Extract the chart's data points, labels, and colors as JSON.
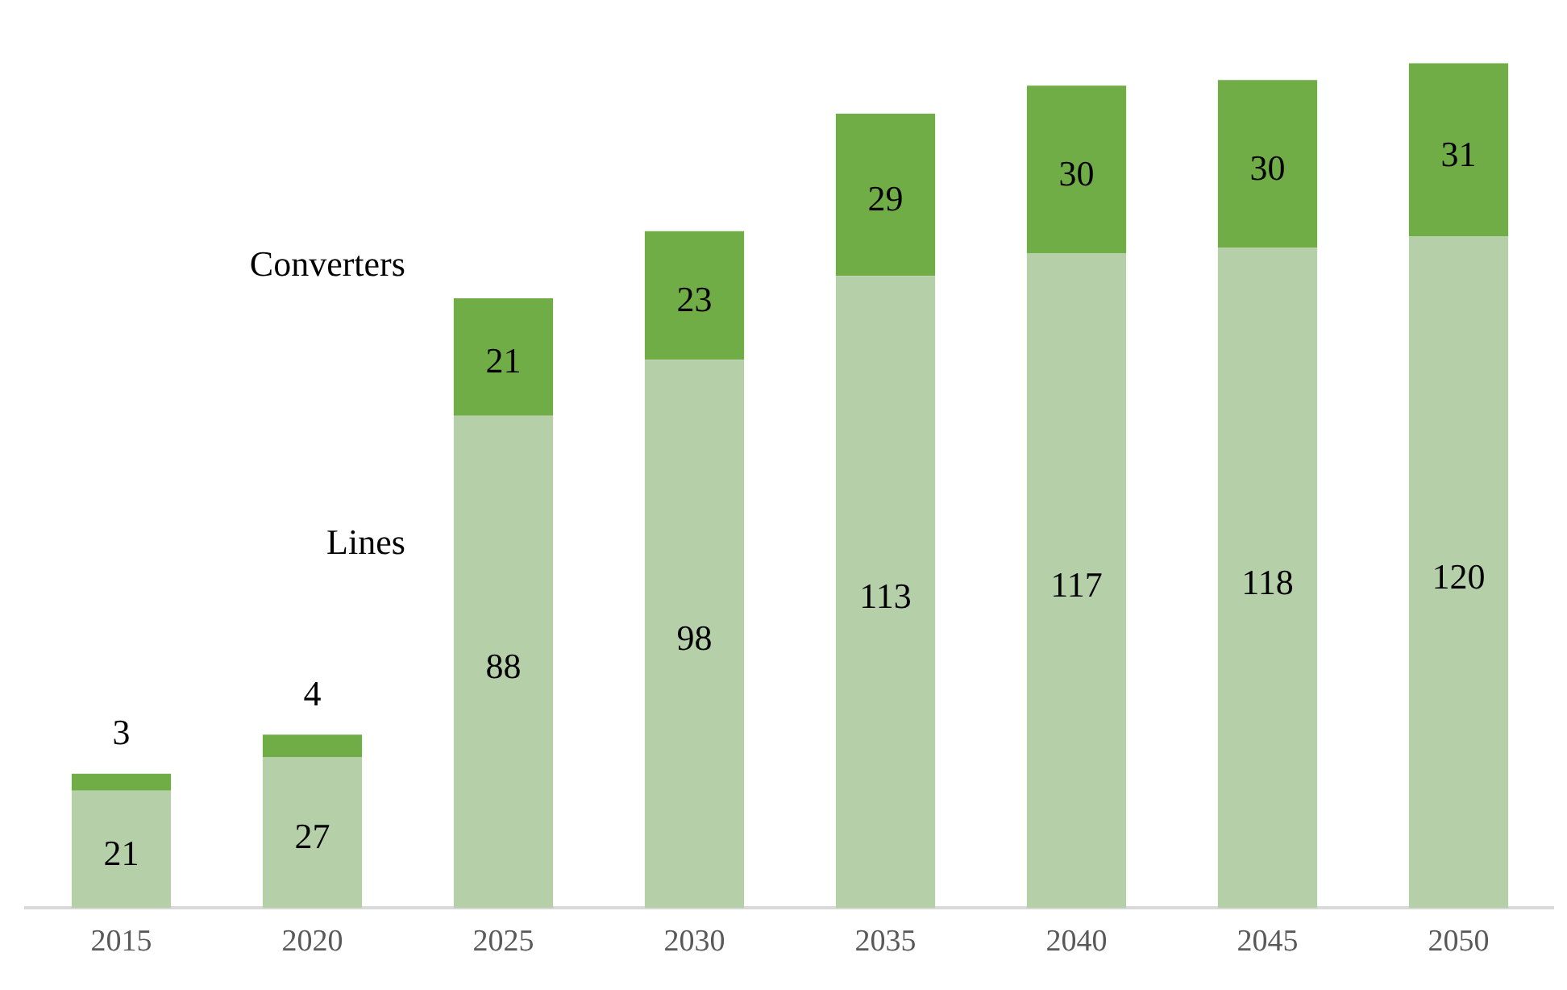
{
  "chart_data": {
    "type": "bar",
    "stacked": true,
    "relative": false,
    "data_labels": true,
    "legend": false,
    "grid": false,
    "categories": [
      "2015",
      "2020",
      "2025",
      "2030",
      "2035",
      "2040",
      "2045",
      "2050"
    ],
    "series": [
      {
        "name": "Lines",
        "color": "#b5d0a8",
        "values": [
          21,
          27,
          88,
          98,
          113,
          117,
          118,
          120
        ]
      },
      {
        "name": "Converters",
        "color": "#70ad47",
        "values": [
          3,
          4,
          21,
          23,
          29,
          30,
          30,
          31
        ]
      }
    ]
  }
}
